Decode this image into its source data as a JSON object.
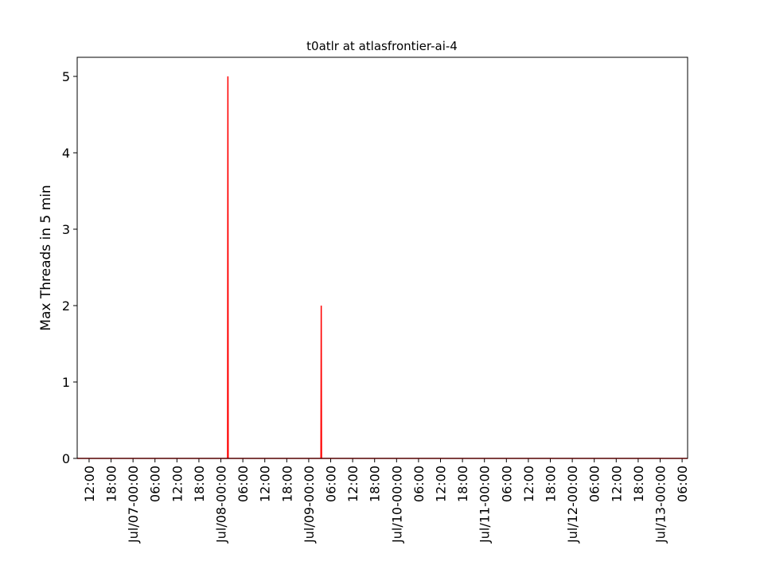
{
  "chart_data": {
    "type": "line",
    "title": "t0atlr at atlasfrontier-ai-4",
    "y_label": "Max Threads in 5 min",
    "x": [
      "Jul/06-08:45",
      "Jul/08-01:50",
      "Jul/08-01:55",
      "Jul/08-02:00",
      "Jul/09-03:20",
      "Jul/09-03:25",
      "Jul/09-03:30",
      "Jul/13-07:30"
    ],
    "series": [
      {
        "name": "t0atlr",
        "color": "#ff0000",
        "values": [
          0,
          0,
          5,
          0,
          0,
          2,
          0,
          0
        ]
      }
    ],
    "xlim": [
      "Jul/06-08:45",
      "Jul/13-07:30"
    ],
    "xticks": [
      {
        "value": "Jul/06-12:00",
        "label": "12:00"
      },
      {
        "value": "Jul/06-18:00",
        "label": "18:00"
      },
      {
        "value": "Jul/07-00:00",
        "label": "Jul/07-00:00"
      },
      {
        "value": "Jul/07-06:00",
        "label": "06:00"
      },
      {
        "value": "Jul/07-12:00",
        "label": "12:00"
      },
      {
        "value": "Jul/07-18:00",
        "label": "18:00"
      },
      {
        "value": "Jul/08-00:00",
        "label": "Jul/08-00:00"
      },
      {
        "value": "Jul/08-06:00",
        "label": "06:00"
      },
      {
        "value": "Jul/08-12:00",
        "label": "12:00"
      },
      {
        "value": "Jul/08-18:00",
        "label": "18:00"
      },
      {
        "value": "Jul/09-00:00",
        "label": "Jul/09-00:00"
      },
      {
        "value": "Jul/09-06:00",
        "label": "06:00"
      },
      {
        "value": "Jul/09-12:00",
        "label": "12:00"
      },
      {
        "value": "Jul/09-18:00",
        "label": "18:00"
      },
      {
        "value": "Jul/10-00:00",
        "label": "Jul/10-00:00"
      },
      {
        "value": "Jul/10-06:00",
        "label": "06:00"
      },
      {
        "value": "Jul/10-12:00",
        "label": "12:00"
      },
      {
        "value": "Jul/10-18:00",
        "label": "18:00"
      },
      {
        "value": "Jul/11-00:00",
        "label": "Jul/11-00:00"
      },
      {
        "value": "Jul/11-06:00",
        "label": "06:00"
      },
      {
        "value": "Jul/11-12:00",
        "label": "12:00"
      },
      {
        "value": "Jul/11-18:00",
        "label": "18:00"
      },
      {
        "value": "Jul/12-00:00",
        "label": "Jul/12-00:00"
      },
      {
        "value": "Jul/12-06:00",
        "label": "06:00"
      },
      {
        "value": "Jul/12-12:00",
        "label": "12:00"
      },
      {
        "value": "Jul/12-18:00",
        "label": "18:00"
      },
      {
        "value": "Jul/13-00:00",
        "label": "Jul/13-00:00"
      },
      {
        "value": "Jul/13-06:00",
        "label": "06:00"
      }
    ],
    "ylim": [
      0,
      5.25
    ],
    "yticks": [
      0,
      1,
      2,
      3,
      4,
      5
    ]
  }
}
